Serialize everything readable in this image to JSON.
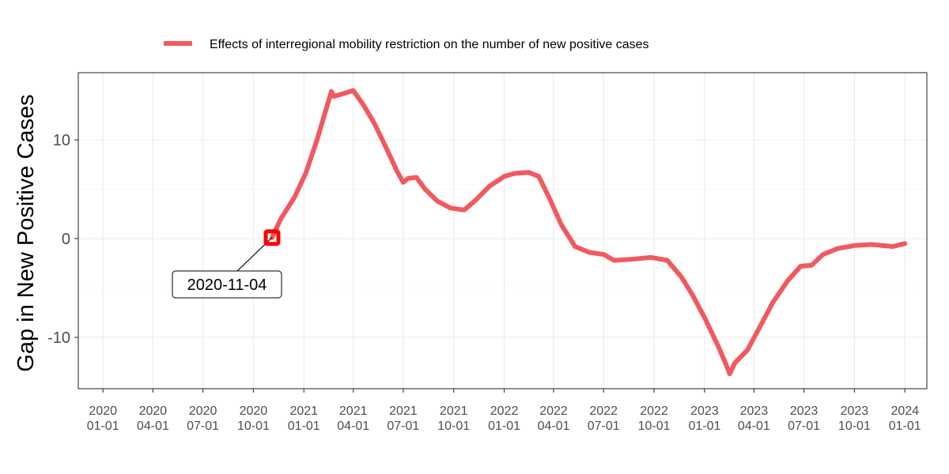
{
  "chart_data": {
    "type": "line",
    "title": "",
    "xlabel": "",
    "ylabel": "Gap in New Positive Cases",
    "xlim": [
      "2019-11-17",
      "2024-02-10"
    ],
    "ylim": [
      -15.2,
      16.8
    ],
    "grid": true,
    "legend_position": "top",
    "x_ticks": [
      {
        "date": "2020-01-01",
        "line1": "2020",
        "line2": "01-01"
      },
      {
        "date": "2020-04-01",
        "line1": "2020",
        "line2": "04-01"
      },
      {
        "date": "2020-07-01",
        "line1": "2020",
        "line2": "07-01"
      },
      {
        "date": "2020-10-01",
        "line1": "2020",
        "line2": "10-01"
      },
      {
        "date": "2021-01-01",
        "line1": "2021",
        "line2": "01-01"
      },
      {
        "date": "2021-04-01",
        "line1": "2021",
        "line2": "04-01"
      },
      {
        "date": "2021-07-01",
        "line1": "2021",
        "line2": "07-01"
      },
      {
        "date": "2021-10-01",
        "line1": "2021",
        "line2": "10-01"
      },
      {
        "date": "2022-01-01",
        "line1": "2022",
        "line2": "01-01"
      },
      {
        "date": "2022-04-01",
        "line1": "2022",
        "line2": "04-01"
      },
      {
        "date": "2022-07-01",
        "line1": "2022",
        "line2": "07-01"
      },
      {
        "date": "2022-10-01",
        "line1": "2022",
        "line2": "10-01"
      },
      {
        "date": "2023-01-01",
        "line1": "2023",
        "line2": "01-01"
      },
      {
        "date": "2023-04-01",
        "line1": "2023",
        "line2": "04-01"
      },
      {
        "date": "2023-07-01",
        "line1": "2023",
        "line2": "07-01"
      },
      {
        "date": "2023-10-01",
        "line1": "2023",
        "line2": "10-01"
      },
      {
        "date": "2024-01-01",
        "line1": "2024",
        "line2": "01-01"
      }
    ],
    "y_ticks": [
      {
        "value": -10,
        "label": "-10"
      },
      {
        "value": 0,
        "label": "0"
      },
      {
        "value": 10,
        "label": "10"
      }
    ],
    "series": [
      {
        "name": "Effects of interregional mobility restriction on the number of new positive cases",
        "color": "#f05a5f",
        "points": [
          [
            "2020-11-04",
            0.1
          ],
          [
            "2020-11-20",
            2.0
          ],
          [
            "2020-12-15",
            4.2
          ],
          [
            "2021-01-05",
            6.7
          ],
          [
            "2021-01-25",
            10.0
          ],
          [
            "2021-02-10",
            13.0
          ],
          [
            "2021-02-20",
            14.9
          ],
          [
            "2021-02-25",
            14.4
          ],
          [
            "2021-03-15",
            14.7
          ],
          [
            "2021-04-01",
            15.0
          ],
          [
            "2021-04-20",
            13.5
          ],
          [
            "2021-05-10",
            11.6
          ],
          [
            "2021-05-30",
            9.3
          ],
          [
            "2021-06-20",
            6.8
          ],
          [
            "2021-07-01",
            5.7
          ],
          [
            "2021-07-10",
            6.1
          ],
          [
            "2021-07-25",
            6.2
          ],
          [
            "2021-08-10",
            5.0
          ],
          [
            "2021-09-01",
            3.8
          ],
          [
            "2021-09-25",
            3.1
          ],
          [
            "2021-10-20",
            2.9
          ],
          [
            "2021-11-10",
            3.9
          ],
          [
            "2021-12-05",
            5.3
          ],
          [
            "2022-01-01",
            6.3
          ],
          [
            "2022-01-20",
            6.6
          ],
          [
            "2022-02-15",
            6.7
          ],
          [
            "2022-03-05",
            6.3
          ],
          [
            "2022-03-25",
            4.0
          ],
          [
            "2022-04-15",
            1.4
          ],
          [
            "2022-05-10",
            -0.8
          ],
          [
            "2022-06-05",
            -1.4
          ],
          [
            "2022-07-01",
            -1.6
          ],
          [
            "2022-07-20",
            -2.2
          ],
          [
            "2022-08-20",
            -2.1
          ],
          [
            "2022-09-25",
            -1.9
          ],
          [
            "2022-10-25",
            -2.2
          ],
          [
            "2022-11-20",
            -3.9
          ],
          [
            "2022-12-10",
            -5.7
          ],
          [
            "2023-01-01",
            -8.0
          ],
          [
            "2023-01-25",
            -10.8
          ],
          [
            "2023-02-08",
            -12.6
          ],
          [
            "2023-02-16",
            -13.7
          ],
          [
            "2023-02-25",
            -12.6
          ],
          [
            "2023-03-20",
            -11.3
          ],
          [
            "2023-04-15",
            -8.6
          ],
          [
            "2023-05-05",
            -6.5
          ],
          [
            "2023-06-01",
            -4.3
          ],
          [
            "2023-06-25",
            -2.8
          ],
          [
            "2023-07-15",
            -2.7
          ],
          [
            "2023-08-05",
            -1.6
          ],
          [
            "2023-09-01",
            -1.0
          ],
          [
            "2023-10-01",
            -0.7
          ],
          [
            "2023-11-01",
            -0.6
          ],
          [
            "2023-12-10",
            -0.8
          ],
          [
            "2024-01-01",
            -0.5
          ]
        ]
      }
    ],
    "highlight": {
      "date": "2020-11-04",
      "value": 0.1,
      "label": "2020-11-04",
      "color": "#ff0000"
    }
  }
}
